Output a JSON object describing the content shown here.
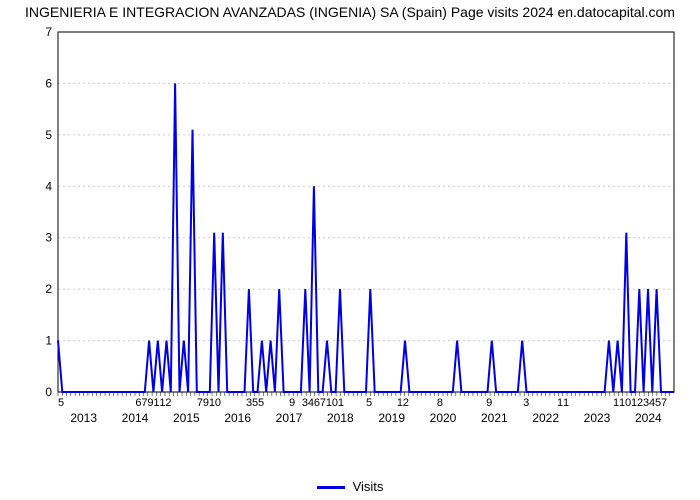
{
  "chart": {
    "type": "line",
    "title": "INGENIERIA E INTEGRACION AVANZADAS (INGENIA) SA (Spain) Page visits 2024 en.datocapital.com",
    "title_fontsize": 14,
    "background_color": "#ffffff",
    "line_color": "#0000e6",
    "line_width": 2,
    "axis_color": "#000000",
    "grid_color": "#cccccc",
    "grid_dash": "2,3",
    "tick_fontsize": 12,
    "year_fontsize": 12,
    "ylim": [
      0,
      7
    ],
    "ytick_step": 1,
    "yticks": [
      0,
      1,
      2,
      3,
      4,
      5,
      6,
      7
    ],
    "years": [
      "2013",
      "2014",
      "2015",
      "2016",
      "2017",
      "2018",
      "2019",
      "2020",
      "2021",
      "2022",
      "2023",
      "2024"
    ],
    "n_points": 145,
    "left_tick_label": "5",
    "dense_tick_groups": [
      {
        "x_frac": 0.155,
        "labels": [
          "6",
          "7",
          "9",
          "1",
          "1",
          "2"
        ]
      },
      {
        "x_frac": 0.245,
        "labels": [
          "7",
          "9",
          "1",
          "0"
        ]
      },
      {
        "x_frac": 0.32,
        "labels": [
          "3",
          "5",
          "5"
        ]
      },
      {
        "x_frac": 0.38,
        "labels": [
          "9"
        ]
      },
      {
        "x_frac": 0.43,
        "labels": [
          "3",
          "4",
          "6",
          "7",
          "1",
          "0",
          "1"
        ]
      },
      {
        "x_frac": 0.505,
        "labels": [
          "5"
        ]
      },
      {
        "x_frac": 0.56,
        "labels": [
          "1",
          "2"
        ]
      },
      {
        "x_frac": 0.62,
        "labels": [
          "8"
        ]
      },
      {
        "x_frac": 0.7,
        "labels": [
          "9"
        ]
      },
      {
        "x_frac": 0.76,
        "labels": [
          "3"
        ]
      },
      {
        "x_frac": 0.82,
        "labels": [
          "1",
          "1"
        ]
      },
      {
        "x_frac": 0.945,
        "labels": [
          "1",
          "1",
          "0",
          "1",
          "2",
          "3",
          "4",
          "5",
          "7"
        ]
      }
    ],
    "values": [
      1,
      0,
      0,
      0,
      0,
      0,
      0,
      0,
      0,
      0,
      0,
      0,
      0,
      0,
      0,
      0,
      0,
      0,
      0,
      0,
      0,
      1,
      0,
      1,
      0,
      1,
      0,
      6,
      0,
      1,
      0,
      5.1,
      0,
      0,
      0,
      0,
      3.1,
      0,
      3.1,
      0,
      0,
      0,
      0,
      0,
      2,
      0,
      0,
      1,
      0,
      1,
      0,
      2,
      0,
      0,
      0,
      0,
      0,
      2,
      0,
      4,
      0,
      0,
      1,
      0,
      0,
      2,
      0,
      0,
      0,
      0,
      0,
      0,
      2,
      0,
      0,
      0,
      0,
      0,
      0,
      0,
      1,
      0,
      0,
      0,
      0,
      0,
      0,
      0,
      0,
      0,
      0,
      0,
      1,
      0,
      0,
      0,
      0,
      0,
      0,
      0,
      1,
      0,
      0,
      0,
      0,
      0,
      0,
      1,
      0,
      0,
      0,
      0,
      0,
      0,
      0,
      0,
      0,
      0,
      0,
      0,
      0,
      0,
      0,
      0,
      0,
      0,
      0,
      1,
      0,
      1,
      0,
      3.1,
      0,
      0,
      2,
      0,
      2,
      0,
      2,
      0,
      0,
      0,
      0
    ],
    "legend": {
      "label": "Visits"
    }
  }
}
